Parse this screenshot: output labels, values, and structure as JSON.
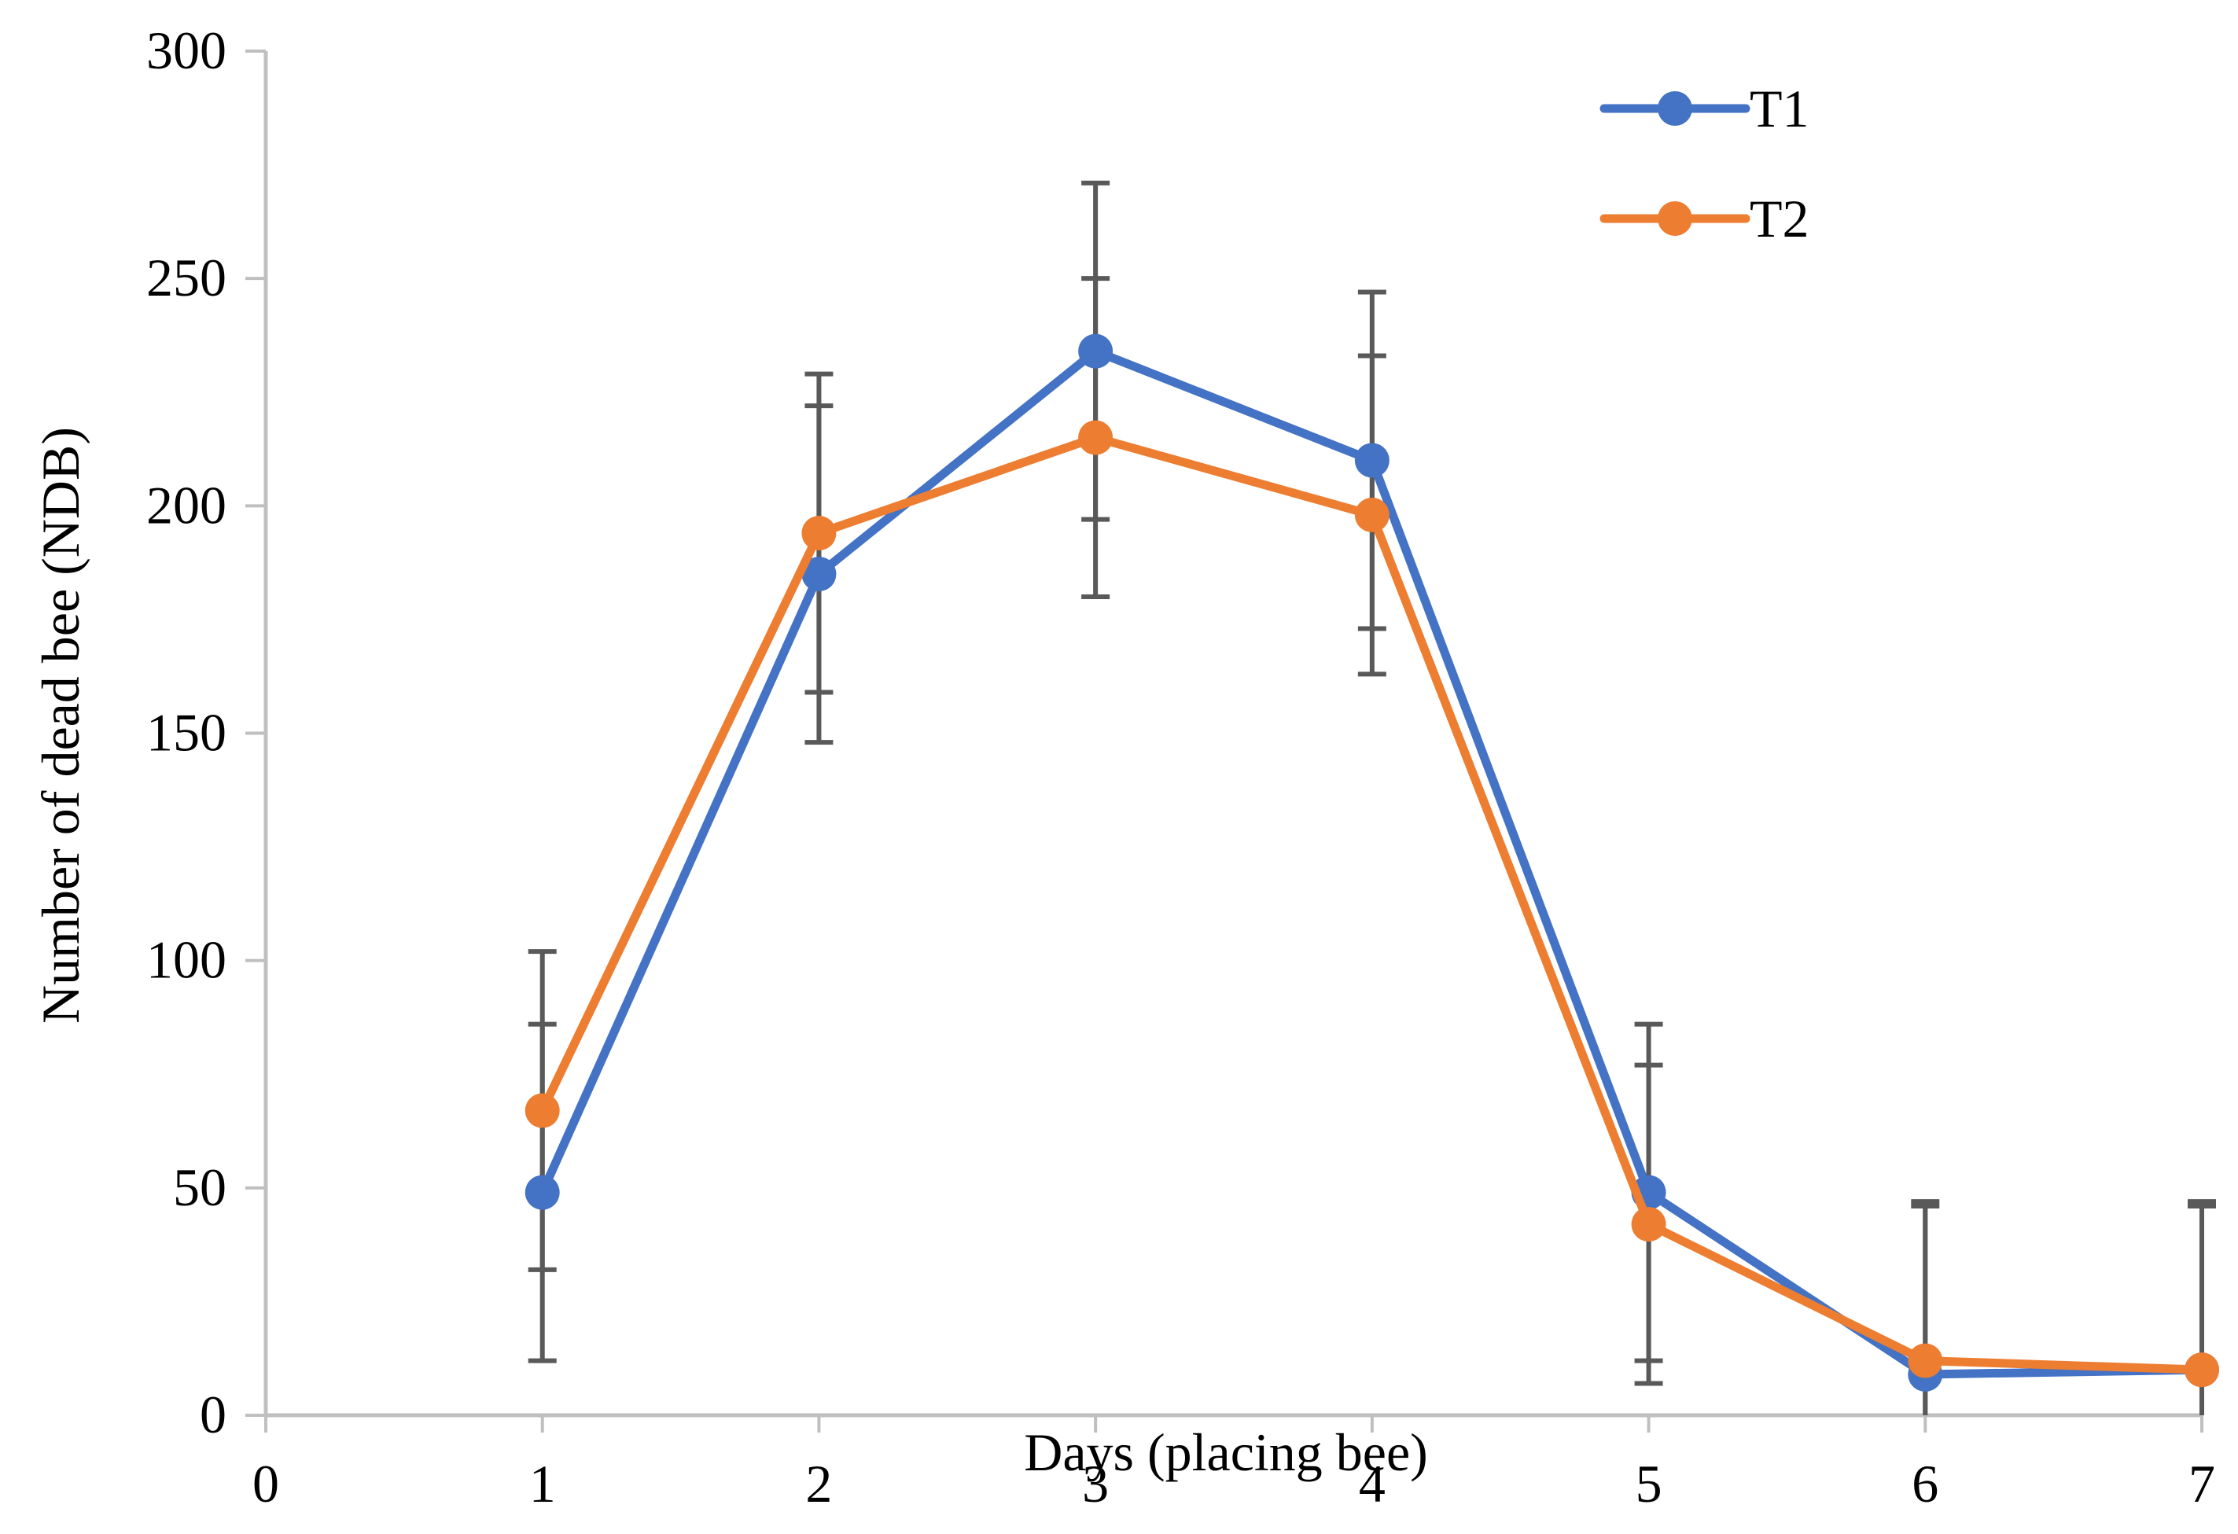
{
  "chart_data": {
    "type": "line",
    "title": "",
    "xlabel": "Days (placing bee)",
    "ylabel": "Number of dead bee (NDB)",
    "xlim": [
      0,
      7
    ],
    "ylim": [
      0,
      300
    ],
    "x_ticks": [
      "0",
      "1",
      "2",
      "3",
      "4",
      "5",
      "6",
      "7"
    ],
    "y_ticks": [
      "0",
      "50",
      "100",
      "150",
      "200",
      "250",
      "300"
    ],
    "x": [
      1,
      2,
      3,
      4,
      5,
      6,
      7
    ],
    "series": [
      {
        "name": "T1",
        "color": "#4472c4",
        "values": [
          49,
          185,
          234,
          210,
          49,
          9,
          10
        ],
        "error_low": [
          12,
          148,
          197,
          173,
          12,
          0,
          0
        ],
        "error_high": [
          86,
          222,
          271,
          247,
          86,
          46,
          46
        ]
      },
      {
        "name": "T2",
        "color": "#ed7d31",
        "values": [
          67,
          194,
          215,
          198,
          42,
          12,
          10
        ],
        "error_low": [
          32,
          159,
          180,
          163,
          7,
          0,
          0
        ],
        "error_high": [
          102,
          229,
          250,
          233,
          77,
          47,
          47
        ]
      }
    ],
    "legend": {
      "position": "top-right",
      "entries": [
        "T1",
        "T2"
      ]
    },
    "grid": false
  }
}
